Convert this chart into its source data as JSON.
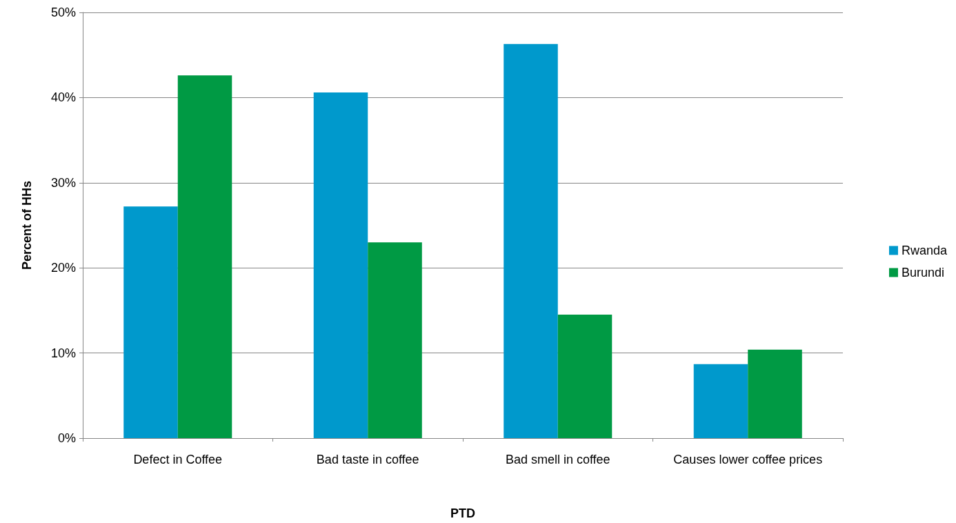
{
  "chart_data": {
    "type": "bar",
    "xlabel": "PTD",
    "ylabel": "Percent of HHs",
    "categories": [
      "Defect in Coffee",
      "Bad taste in coffee",
      "Bad smell in coffee",
      "Causes lower coffee prices"
    ],
    "series": [
      {
        "name": "Rwanda",
        "color": "#0099cc",
        "values": [
          27.2,
          40.6,
          46.3,
          8.7
        ]
      },
      {
        "name": "Burundi",
        "color": "#009a44",
        "values": [
          42.6,
          23.0,
          14.5,
          10.4
        ]
      }
    ],
    "ylim": [
      0,
      50
    ],
    "yticks": [
      {
        "value": 0,
        "label": "0%"
      },
      {
        "value": 10,
        "label": "10%"
      },
      {
        "value": 20,
        "label": "20%"
      },
      {
        "value": 30,
        "label": "30%"
      },
      {
        "value": 40,
        "label": "40%"
      },
      {
        "value": 50,
        "label": "50%"
      }
    ],
    "grid": "y",
    "legend": "right"
  }
}
